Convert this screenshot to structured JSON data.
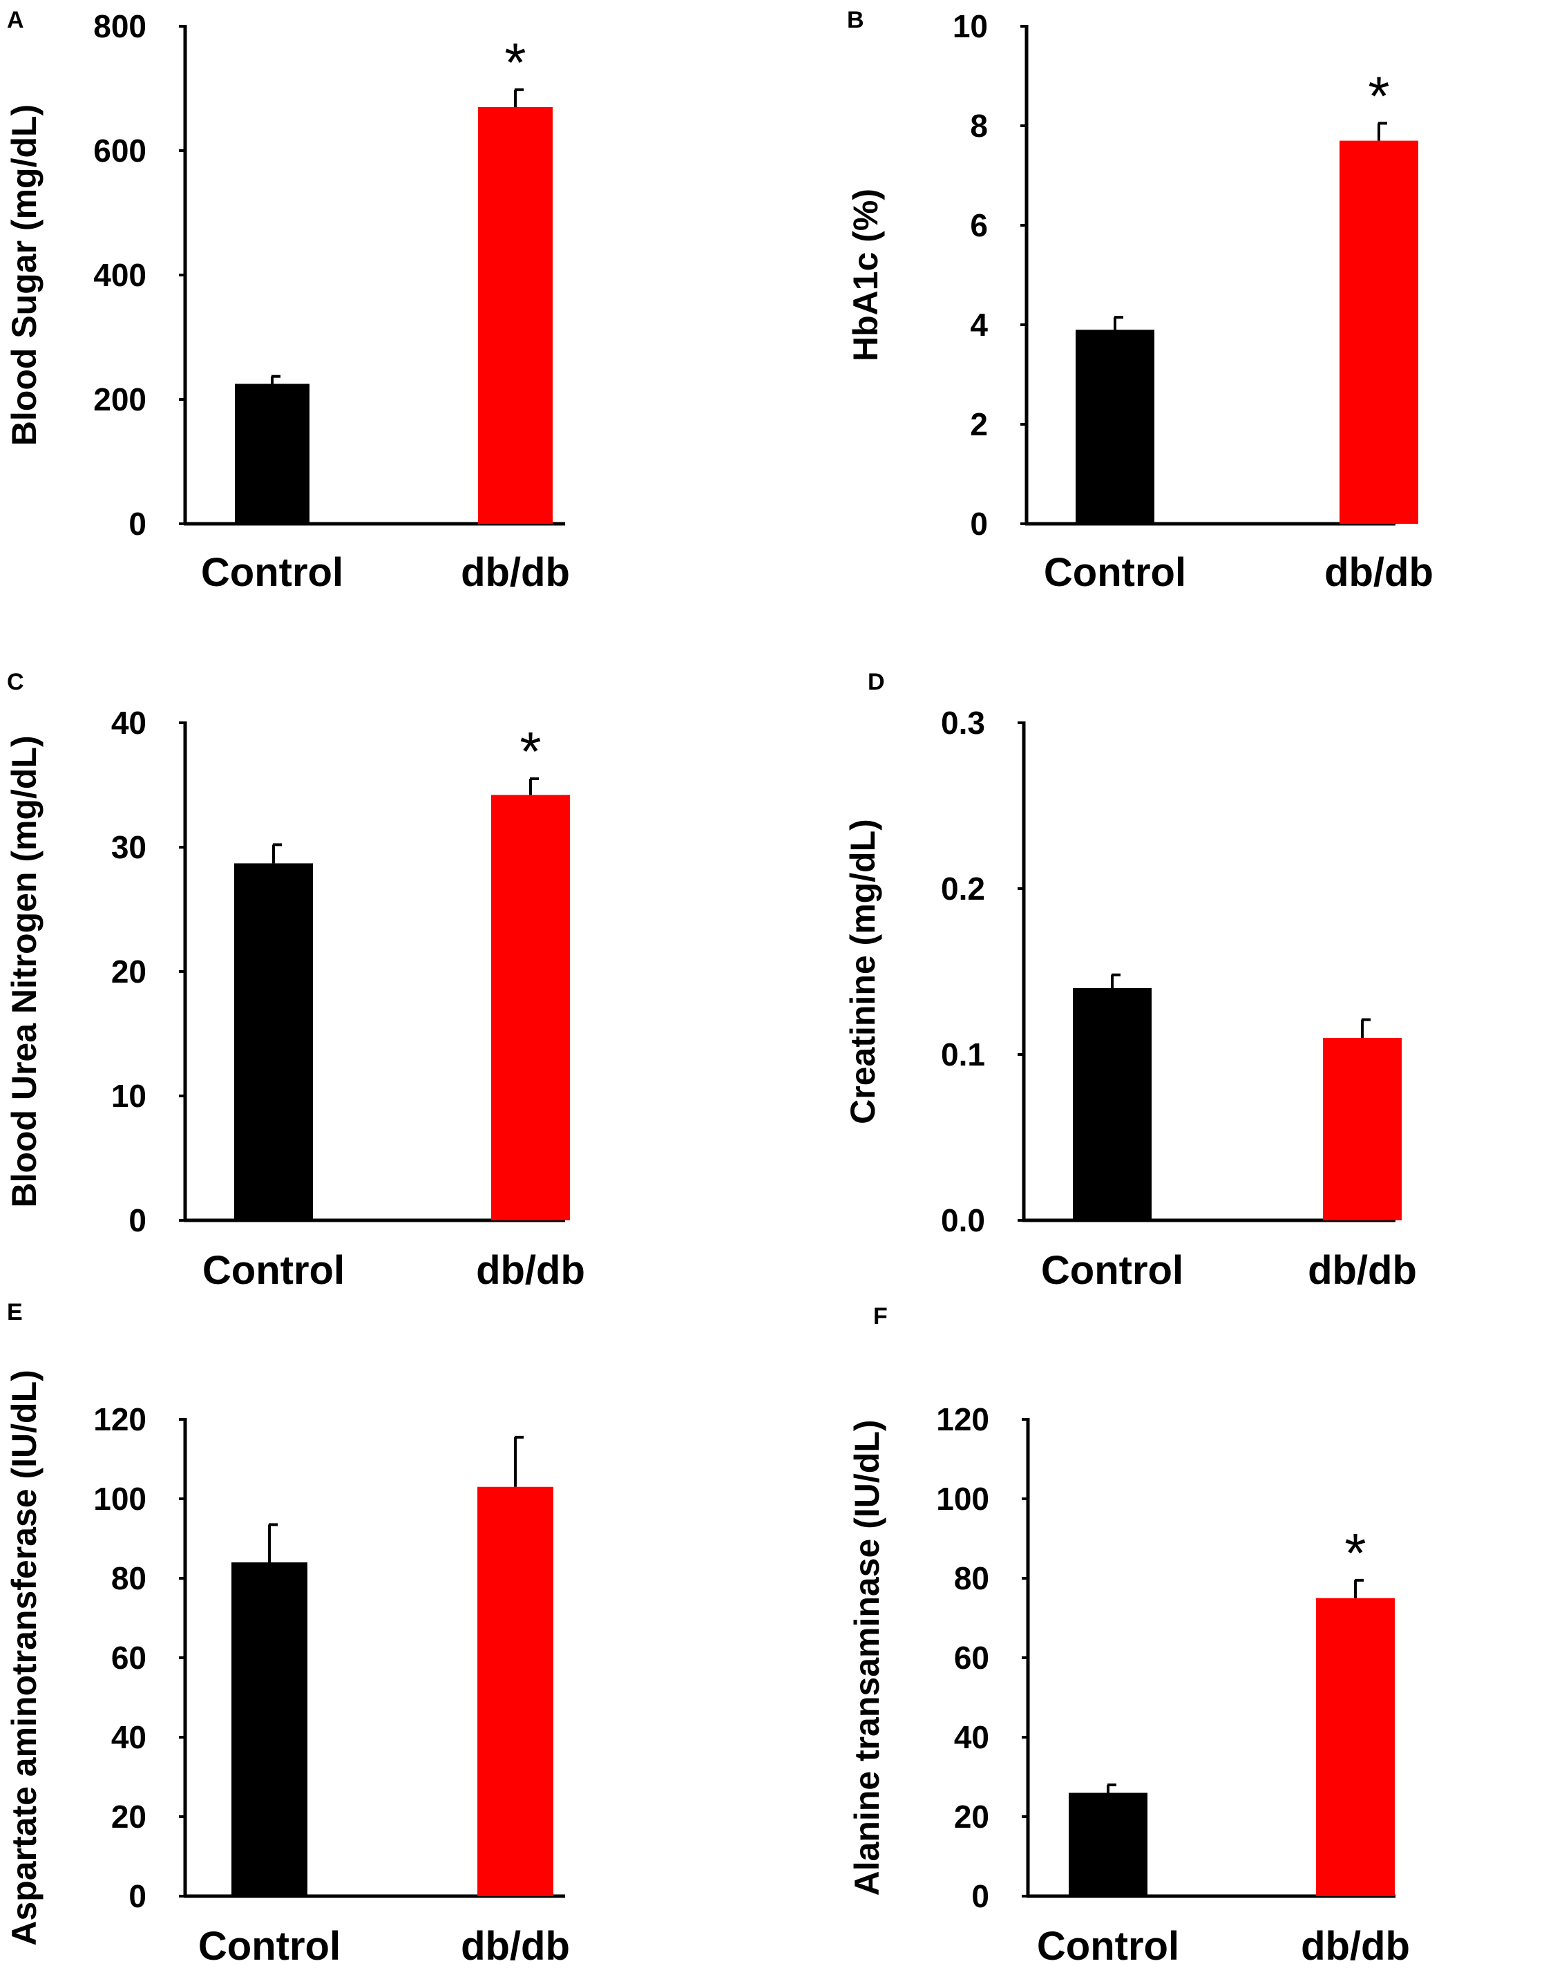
{
  "colors": {
    "control": "#000000",
    "dbdb": "#ff0000",
    "axis": "#000000"
  },
  "chart_data": [
    {
      "panel": "A",
      "type": "bar",
      "categories": [
        "Control",
        "db/db"
      ],
      "values": [
        225,
        670
      ],
      "errors": [
        12,
        28
      ],
      "ylabel": "Blood Sugar (mg/dL)",
      "ylim": [
        0,
        800
      ],
      "yticks": [
        "0",
        "200",
        "400",
        "600",
        "800"
      ],
      "significance": [
        "",
        "*"
      ]
    },
    {
      "panel": "B",
      "type": "bar",
      "categories": [
        "Control",
        "db/db"
      ],
      "values": [
        3.9,
        7.7
      ],
      "errors": [
        0.25,
        0.35
      ],
      "ylabel": "HbA1c (%)",
      "ylim": [
        0,
        10
      ],
      "yticks": [
        "0",
        "2",
        "4",
        "6",
        "8",
        "10"
      ],
      "significance": [
        "",
        "*"
      ]
    },
    {
      "panel": "C",
      "type": "bar",
      "categories": [
        "Control",
        "db/db"
      ],
      "values": [
        28.7,
        34.2
      ],
      "errors": [
        1.5,
        1.3
      ],
      "ylabel": "Blood Urea Nitrogen (mg/dL)",
      "ylim": [
        0,
        40
      ],
      "yticks": [
        "0",
        "10",
        "20",
        "30",
        "40"
      ],
      "significance": [
        "",
        "*"
      ]
    },
    {
      "panel": "D",
      "type": "bar",
      "categories": [
        "Control",
        "db/db"
      ],
      "values": [
        0.14,
        0.11
      ],
      "errors": [
        0.008,
        0.011
      ],
      "ylabel": "Creatinine (mg/dL)",
      "ylim": [
        0,
        0.3
      ],
      "yticks": [
        "0.0",
        "0.1",
        "0.2",
        "0.3"
      ],
      "significance": [
        "",
        ""
      ]
    },
    {
      "panel": "E",
      "type": "bar",
      "categories": [
        "Control",
        "db/db"
      ],
      "values": [
        84,
        103
      ],
      "errors": [
        9.5,
        12.5
      ],
      "ylabel": "Aspartate aminotransferase (IU/dL)",
      "ylim": [
        0,
        120
      ],
      "yticks": [
        "0",
        "20",
        "40",
        "60",
        "80",
        "100",
        "120"
      ],
      "significance": [
        "",
        ""
      ]
    },
    {
      "panel": "F",
      "type": "bar",
      "categories": [
        "Control",
        "db/db"
      ],
      "values": [
        26,
        75
      ],
      "errors": [
        2,
        4.5
      ],
      "ylabel": "Alanine transaminase (IU/dL)",
      "ylim": [
        0,
        120
      ],
      "yticks": [
        "0",
        "20",
        "40",
        "60",
        "80",
        "100",
        "120"
      ],
      "significance": [
        "",
        "*"
      ]
    }
  ]
}
